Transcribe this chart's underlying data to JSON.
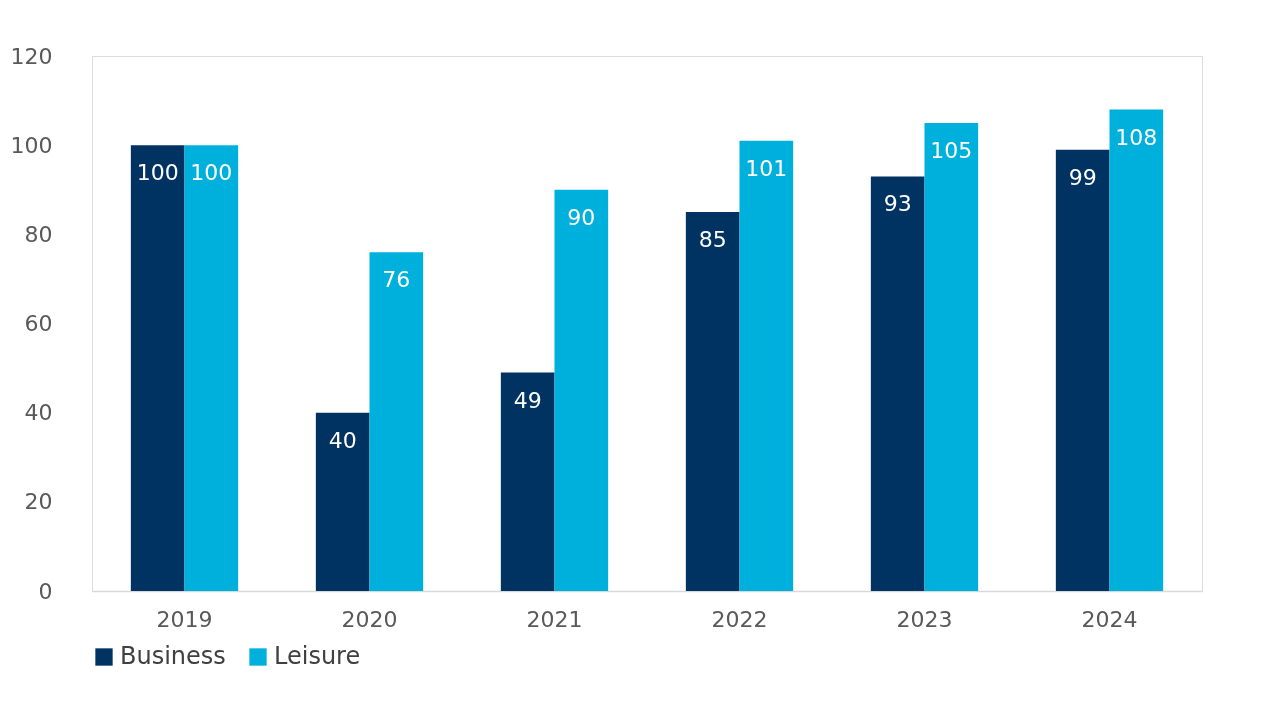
{
  "chart_data": {
    "type": "bar",
    "categories": [
      "2019",
      "2020",
      "2021",
      "2022",
      "2023",
      "2024"
    ],
    "series": [
      {
        "name": "Business",
        "color": "#003262",
        "values": [
          100,
          40,
          49,
          85,
          93,
          99
        ]
      },
      {
        "name": "Leisure",
        "color": "#00b0dc",
        "values": [
          100,
          76,
          90,
          101,
          105,
          108
        ]
      }
    ],
    "ylim": [
      0,
      120
    ],
    "yticks": [
      0,
      20,
      40,
      60,
      80,
      100,
      120
    ],
    "grid": false,
    "legend": "bottom",
    "data_labels": true
  }
}
